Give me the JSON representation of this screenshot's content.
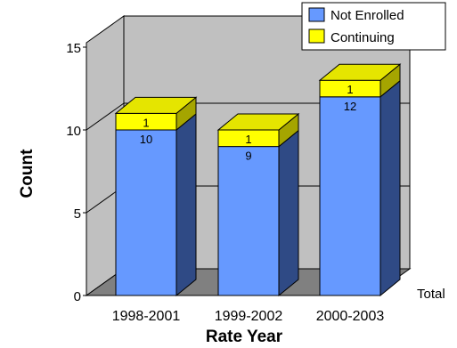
{
  "chart_data": {
    "type": "bar",
    "stacked": true,
    "three_d": true,
    "title": "",
    "xlabel": "Rate Year",
    "ylabel": "Count",
    "depth_label": "Total",
    "categories": [
      "1998-2001",
      "1999-2002",
      "2000-2003"
    ],
    "series": [
      {
        "name": "Not Enrolled",
        "values": [
          10,
          9,
          12
        ],
        "color": "#6699FF"
      },
      {
        "name": "Continuing",
        "values": [
          1,
          1,
          1
        ],
        "color": "#FFFF00"
      }
    ],
    "ylim": [
      0,
      15
    ],
    "yticks": [
      "0",
      "5",
      "10",
      "15"
    ],
    "grid": true,
    "legend": "top-right",
    "colors": {
      "wall": "#C0C0C0",
      "floor": "#808080",
      "not_enrolled_side": "#2F4A85",
      "continuing_side": "#A5A500",
      "continuing_top": "#E5E500"
    }
  }
}
